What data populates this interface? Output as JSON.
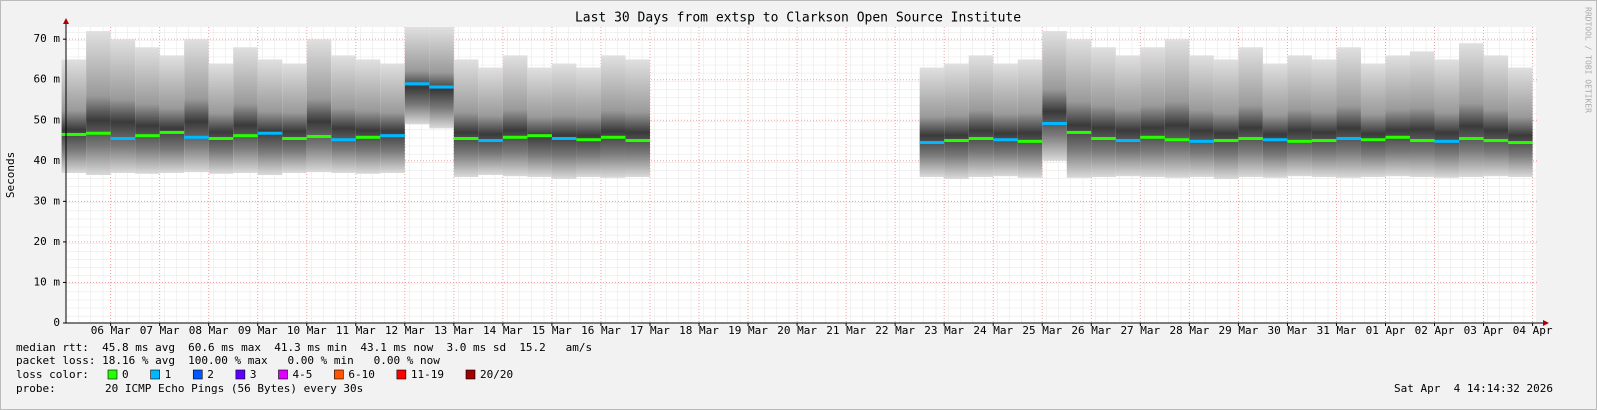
{
  "chart_data": {
    "type": "smokeping",
    "title": "Last 30 Days from extsp to Clarkson Open Source Institute",
    "y_label": "Seconds",
    "watermark": "RRDTOOL / TOBI OETIKER",
    "xlim": [
      0.59,
      30.59
    ],
    "xticks": [
      {
        "value": 1.5,
        "label": "06 Mar"
      },
      {
        "value": 2.5,
        "label": "07 Mar"
      },
      {
        "value": 3.5,
        "label": "08 Mar"
      },
      {
        "value": 4.5,
        "label": "09 Mar"
      },
      {
        "value": 5.5,
        "label": "10 Mar"
      },
      {
        "value": 6.5,
        "label": "11 Mar"
      },
      {
        "value": 7.5,
        "label": "12 Mar"
      },
      {
        "value": 8.5,
        "label": "13 Mar"
      },
      {
        "value": 9.5,
        "label": "14 Mar"
      },
      {
        "value": 10.5,
        "label": "15 Mar"
      },
      {
        "value": 11.5,
        "label": "16 Mar"
      },
      {
        "value": 12.5,
        "label": "17 Mar"
      },
      {
        "value": 13.5,
        "label": "18 Mar"
      },
      {
        "value": 14.5,
        "label": "19 Mar"
      },
      {
        "value": 15.5,
        "label": "20 Mar"
      },
      {
        "value": 16.5,
        "label": "21 Mar"
      },
      {
        "value": 17.5,
        "label": "22 Mar"
      },
      {
        "value": 18.5,
        "label": "23 Mar"
      },
      {
        "value": 19.5,
        "label": "24 Mar"
      },
      {
        "value": 20.5,
        "label": "25 Mar"
      },
      {
        "value": 21.5,
        "label": "26 Mar"
      },
      {
        "value": 22.5,
        "label": "27 Mar"
      },
      {
        "value": 23.5,
        "label": "28 Mar"
      },
      {
        "value": 24.5,
        "label": "29 Mar"
      },
      {
        "value": 25.5,
        "label": "30 Mar"
      },
      {
        "value": 26.5,
        "label": "31 Mar"
      },
      {
        "value": 27.5,
        "label": "01 Apr"
      },
      {
        "value": 28.5,
        "label": "02 Apr"
      },
      {
        "value": 29.5,
        "label": "03 Apr"
      },
      {
        "value": 30.5,
        "label": "04 Apr"
      }
    ],
    "ylim": [
      0,
      0.073
    ],
    "yticks": [
      0,
      {
        "value": 0.01,
        "label": "10 m"
      },
      {
        "value": 0.02,
        "label": "20 m"
      },
      {
        "value": 0.03,
        "label": "30 m"
      },
      {
        "value": 0.04,
        "label": "40 m"
      },
      {
        "value": 0.05,
        "label": "50 m"
      },
      {
        "value": 0.06,
        "label": "60 m"
      },
      {
        "value": 0.07,
        "label": "70 m"
      }
    ],
    "grid": true,
    "x": [
      0.75,
      1.25,
      1.75,
      2.25,
      2.75,
      3.25,
      3.75,
      4.25,
      4.75,
      5.25,
      5.75,
      6.25,
      6.75,
      7.25,
      7.75,
      8.25,
      8.75,
      9.25,
      9.75,
      10.25,
      10.75,
      11.25,
      11.75,
      12.25,
      12.75,
      13.25,
      13.75,
      14.25,
      14.75,
      15.25,
      15.75,
      16.25,
      16.75,
      17.25,
      17.75,
      18.25,
      18.75,
      19.25,
      19.75,
      20.25,
      20.75,
      21.25,
      21.75,
      22.25,
      22.75,
      23.25,
      23.75,
      24.25,
      24.75,
      25.25,
      25.75,
      26.25,
      26.75,
      27.25,
      27.75,
      28.25,
      28.75,
      29.25,
      29.75,
      30.25
    ],
    "median": [
      0.0465,
      0.0468,
      0.0455,
      0.0462,
      0.047,
      0.0458,
      0.0455,
      0.0462,
      0.0468,
      0.0455,
      0.046,
      0.0452,
      0.0458,
      0.0462,
      0.059,
      0.0582,
      0.0455,
      0.045,
      0.0458,
      0.0462,
      0.0455,
      0.0452,
      0.0458,
      0.045,
      null,
      null,
      null,
      null,
      null,
      null,
      null,
      null,
      null,
      null,
      null,
      0.0445,
      0.045,
      0.0455,
      0.0452,
      0.0448,
      0.0492,
      0.047,
      0.0455,
      0.045,
      0.0458,
      0.0452,
      0.0448,
      0.045,
      0.0455,
      0.0452,
      0.0448,
      0.045,
      0.0455,
      0.0452,
      0.0458,
      0.045,
      0.0448,
      0.0455,
      0.045,
      0.0445
    ],
    "smoke_low": [
      0.037,
      0.0365,
      0.037,
      0.0368,
      0.037,
      0.0372,
      0.0368,
      0.037,
      0.0365,
      0.037,
      0.0372,
      0.037,
      0.0368,
      0.037,
      0.049,
      0.048,
      0.036,
      0.0365,
      0.0362,
      0.036,
      0.0355,
      0.036,
      0.0358,
      0.036,
      null,
      null,
      null,
      null,
      null,
      null,
      null,
      null,
      null,
      null,
      null,
      0.036,
      0.0355,
      0.036,
      0.0362,
      0.0358,
      0.04,
      0.0358,
      0.036,
      0.0362,
      0.036,
      0.0358,
      0.036,
      0.0355,
      0.036,
      0.0358,
      0.0362,
      0.036,
      0.0358,
      0.036,
      0.0362,
      0.036,
      0.0358,
      0.036,
      0.0362,
      0.036
    ],
    "smoke_high": [
      0.065,
      0.072,
      0.07,
      0.068,
      0.066,
      0.07,
      0.064,
      0.068,
      0.065,
      0.064,
      0.07,
      0.066,
      0.065,
      0.064,
      0.073,
      0.073,
      0.065,
      0.063,
      0.066,
      0.063,
      0.064,
      0.063,
      0.066,
      0.065,
      null,
      null,
      null,
      null,
      null,
      null,
      null,
      null,
      null,
      null,
      null,
      0.063,
      0.064,
      0.066,
      0.064,
      0.065,
      0.072,
      0.07,
      0.068,
      0.066,
      0.068,
      0.07,
      0.066,
      0.065,
      0.068,
      0.064,
      0.066,
      0.065,
      0.068,
      0.064,
      0.066,
      0.067,
      0.065,
      0.069,
      0.066,
      0.063
    ],
    "loss": [
      0,
      0,
      1,
      0,
      0,
      1,
      0,
      0,
      1,
      0,
      0,
      1,
      0,
      1,
      1,
      1,
      0,
      1,
      0,
      0,
      1,
      0,
      0,
      0,
      null,
      null,
      null,
      null,
      null,
      null,
      null,
      null,
      null,
      null,
      null,
      1,
      0,
      0,
      1,
      0,
      1,
      0,
      0,
      1,
      0,
      0,
      1,
      0,
      0,
      1,
      0,
      0,
      1,
      0,
      0,
      0,
      1,
      0,
      0,
      0
    ]
  },
  "stats": [
    "median rtt:  45.8 ms avg  60.6 ms max  41.3 ms min  43.1 ms now  3.0 ms sd  15.2   am/s",
    "packet loss: 18.16 % avg  100.00 % max   0.00 % min   0.00 % now"
  ],
  "loss_legend": {
    "label": "loss color:",
    "items": [
      {
        "label": "0",
        "color": "#26ff00"
      },
      {
        "label": "1",
        "color": "#00b8ff"
      },
      {
        "label": "2",
        "color": "#0059ff"
      },
      {
        "label": "3",
        "color": "#5e00ff"
      },
      {
        "label": "4-5",
        "color": "#dd00ff"
      },
      {
        "label": "6-10",
        "color": "#ff5500"
      },
      {
        "label": "11-19",
        "color": "#ff0000"
      },
      {
        "label": "20/20",
        "color": "#a10000"
      }
    ]
  },
  "probe": {
    "label": "probe:",
    "text": "20 ICMP Echo Pings (56 Bytes) every 30s"
  },
  "timestamp": "Sat Apr  4 14:14:32 2026"
}
